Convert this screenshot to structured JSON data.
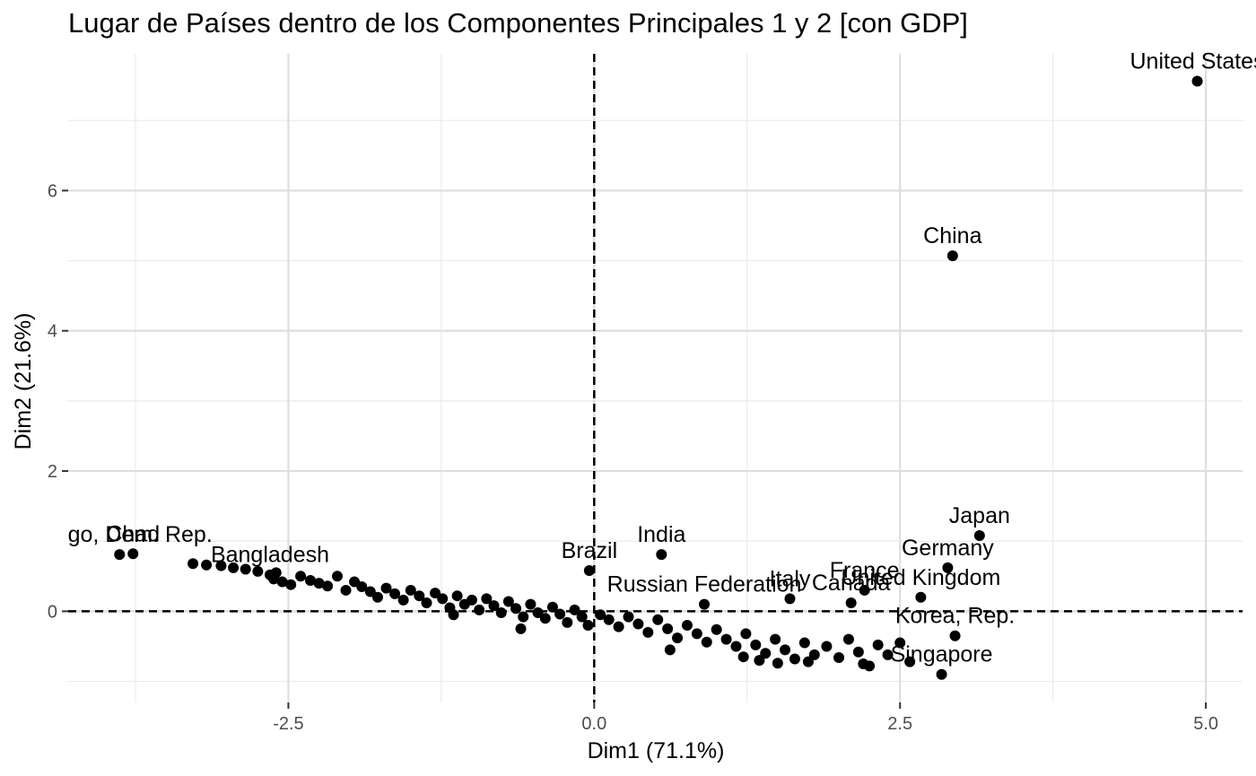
{
  "chart_data": {
    "type": "scatter",
    "title": "Lugar de Países dentro de los Componentes Principales 1 y 2 [con GDP]",
    "xlabel": "Dim1 (71.1%)",
    "ylabel": "Dim2 (21.6%)",
    "xlim": [
      -4.3,
      5.3
    ],
    "ylim": [
      -1.3,
      7.95
    ],
    "x_ticks": [
      {
        "value": -2.5,
        "label": "-2.5"
      },
      {
        "value": 0.0,
        "label": "0.0"
      },
      {
        "value": 2.5,
        "label": "2.5"
      },
      {
        "value": 5.0,
        "label": "5.0"
      }
    ],
    "y_ticks": [
      {
        "value": 0,
        "label": "0"
      },
      {
        "value": 2,
        "label": "2"
      },
      {
        "value": 4,
        "label": "4"
      },
      {
        "value": 6,
        "label": "6"
      }
    ],
    "grid": true,
    "reference_lines": {
      "x": 0,
      "y": 0,
      "style": "dashed"
    },
    "labeled_points": [
      {
        "label": "United States",
        "x": 4.93,
        "y": 7.56
      },
      {
        "label": "China",
        "x": 2.93,
        "y": 5.07
      },
      {
        "label": "Japan",
        "x": 3.15,
        "y": 1.08
      },
      {
        "label": "Germany",
        "x": 2.89,
        "y": 0.62
      },
      {
        "label": "United Kingdom",
        "x": 2.67,
        "y": 0.2
      },
      {
        "label": "France",
        "x": 2.21,
        "y": 0.3
      },
      {
        "label": "Italy",
        "x": 1.6,
        "y": 0.18
      },
      {
        "label": "Canada",
        "x": 2.1,
        "y": 0.12
      },
      {
        "label": "Korea, Rep.",
        "x": 2.95,
        "y": -0.35
      },
      {
        "label": "Singapore",
        "x": 2.84,
        "y": -0.9
      },
      {
        "label": "Russian Federation",
        "x": 0.9,
        "y": 0.1
      },
      {
        "label": "India",
        "x": 0.55,
        "y": 0.81
      },
      {
        "label": "Brazil",
        "x": -0.04,
        "y": 0.58
      },
      {
        "label": "Chad",
        "x": -3.77,
        "y": 0.82
      },
      {
        "label": "Congo, Dem. Rep.",
        "x": -3.88,
        "y": 0.81
      },
      {
        "label": "Bangladesh",
        "x": -2.65,
        "y": 0.52
      }
    ],
    "points": [
      {
        "x": -3.28,
        "y": 0.68
      },
      {
        "x": -3.17,
        "y": 0.66
      },
      {
        "x": -3.05,
        "y": 0.65
      },
      {
        "x": -2.95,
        "y": 0.62
      },
      {
        "x": -2.85,
        "y": 0.6
      },
      {
        "x": -2.75,
        "y": 0.57
      },
      {
        "x": -2.62,
        "y": 0.46
      },
      {
        "x": -2.55,
        "y": 0.42
      },
      {
        "x": -2.48,
        "y": 0.38
      },
      {
        "x": -2.4,
        "y": 0.5
      },
      {
        "x": -2.32,
        "y": 0.44
      },
      {
        "x": -2.25,
        "y": 0.4
      },
      {
        "x": -2.18,
        "y": 0.36
      },
      {
        "x": -2.1,
        "y": 0.5
      },
      {
        "x": -2.03,
        "y": 0.3
      },
      {
        "x": -1.96,
        "y": 0.42
      },
      {
        "x": -1.9,
        "y": 0.35
      },
      {
        "x": -1.83,
        "y": 0.28
      },
      {
        "x": -1.77,
        "y": 0.2
      },
      {
        "x": -1.7,
        "y": 0.33
      },
      {
        "x": -1.63,
        "y": 0.25
      },
      {
        "x": -1.56,
        "y": 0.16
      },
      {
        "x": -1.5,
        "y": 0.3
      },
      {
        "x": -1.43,
        "y": 0.22
      },
      {
        "x": -1.37,
        "y": 0.12
      },
      {
        "x": -1.3,
        "y": 0.26
      },
      {
        "x": -1.24,
        "y": 0.18
      },
      {
        "x": -1.18,
        "y": 0.05
      },
      {
        "x": -1.12,
        "y": 0.22
      },
      {
        "x": -1.06,
        "y": 0.1
      },
      {
        "x": -1.0,
        "y": 0.16
      },
      {
        "x": -0.94,
        "y": 0.02
      },
      {
        "x": -0.88,
        "y": 0.18
      },
      {
        "x": -0.82,
        "y": 0.08
      },
      {
        "x": -0.76,
        "y": -0.02
      },
      {
        "x": -0.7,
        "y": 0.14
      },
      {
        "x": -0.64,
        "y": 0.04
      },
      {
        "x": -0.58,
        "y": -0.08
      },
      {
        "x": -0.52,
        "y": 0.1
      },
      {
        "x": -0.46,
        "y": -0.02
      },
      {
        "x": -0.4,
        "y": -0.1
      },
      {
        "x": -0.34,
        "y": 0.06
      },
      {
        "x": -0.28,
        "y": -0.04
      },
      {
        "x": -0.22,
        "y": -0.16
      },
      {
        "x": -0.16,
        "y": 0.02
      },
      {
        "x": -0.1,
        "y": -0.08
      },
      {
        "x": -0.05,
        "y": -0.2
      },
      {
        "x": 0.05,
        "y": -0.05
      },
      {
        "x": 0.12,
        "y": -0.12
      },
      {
        "x": 0.2,
        "y": -0.22
      },
      {
        "x": 0.28,
        "y": -0.08
      },
      {
        "x": 0.36,
        "y": -0.18
      },
      {
        "x": 0.44,
        "y": -0.3
      },
      {
        "x": 0.52,
        "y": -0.12
      },
      {
        "x": 0.6,
        "y": -0.25
      },
      {
        "x": 0.68,
        "y": -0.38
      },
      {
        "x": 0.76,
        "y": -0.2
      },
      {
        "x": 0.84,
        "y": -0.32
      },
      {
        "x": 0.92,
        "y": -0.44
      },
      {
        "x": 1.0,
        "y": -0.26
      },
      {
        "x": 1.08,
        "y": -0.4
      },
      {
        "x": 1.16,
        "y": -0.5
      },
      {
        "x": 1.24,
        "y": -0.32
      },
      {
        "x": 1.32,
        "y": -0.48
      },
      {
        "x": 1.4,
        "y": -0.6
      },
      {
        "x": 1.48,
        "y": -0.4
      },
      {
        "x": 1.56,
        "y": -0.55
      },
      {
        "x": 1.64,
        "y": -0.68
      },
      {
        "x": 1.72,
        "y": -0.45
      },
      {
        "x": 1.8,
        "y": -0.62
      },
      {
        "x": 1.9,
        "y": -0.5
      },
      {
        "x": 2.0,
        "y": -0.66
      },
      {
        "x": 2.08,
        "y": -0.4
      },
      {
        "x": 2.16,
        "y": -0.58
      },
      {
        "x": 2.25,
        "y": -0.78
      },
      {
        "x": 2.32,
        "y": -0.48
      },
      {
        "x": 2.4,
        "y": -0.62
      },
      {
        "x": 2.5,
        "y": -0.45
      },
      {
        "x": 2.58,
        "y": -0.72
      },
      {
        "x": 1.22,
        "y": -0.65
      },
      {
        "x": 1.35,
        "y": -0.7
      },
      {
        "x": 1.5,
        "y": -0.74
      },
      {
        "x": 1.75,
        "y": -0.72
      },
      {
        "x": 2.2,
        "y": -0.75
      },
      {
        "x": 0.62,
        "y": -0.55
      },
      {
        "x": -0.6,
        "y": -0.25
      },
      {
        "x": -1.15,
        "y": -0.05
      },
      {
        "x": -2.6,
        "y": 0.55
      }
    ]
  }
}
